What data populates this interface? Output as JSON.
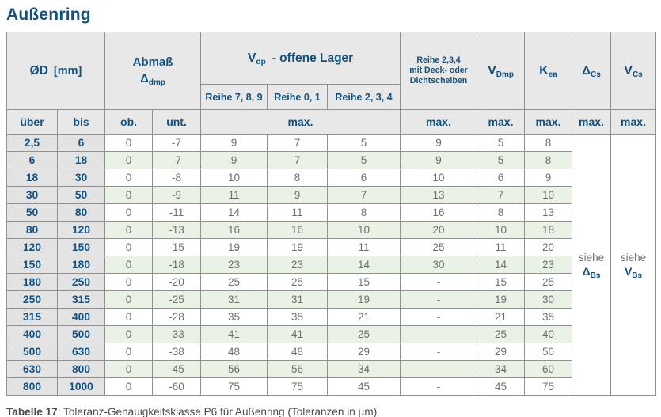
{
  "title": "Außenring",
  "colors": {
    "accent_blue": "#15507d",
    "header_gray": "#e8e8e8",
    "diameter_col_gray": "#e3e3e3",
    "stripe_green": "#eaf2e5",
    "value_text_gray": "#6e6f71",
    "border_gray": "#909090"
  },
  "table": {
    "type": "table",
    "header": {
      "od_sym": "ØD",
      "od_unit": "[mm]",
      "abmass_line1": "Abmaß",
      "abmass_sym": "Δ",
      "abmass_sub": "dmp",
      "vdp_sym": "V",
      "vdp_sub": "dp",
      "vdp_rest": "-  offene Lager",
      "reihe_cols": [
        "Reihe 7, 8, 9",
        "Reihe 0, 1",
        "Reihe 2, 3, 4"
      ],
      "deck_lines": [
        "Reihe 2,3,4",
        "mit Deck- oder",
        "Dichtscheiben"
      ],
      "vdmp_sym": "V",
      "vdmp_sub": "Dmp",
      "kea_sym": "K",
      "kea_sub": "ea",
      "dcs_sym": "Δ",
      "dcs_sub": "Cs",
      "vcs_sym": "V",
      "vcs_sub": "Cs",
      "col_uber": "über",
      "col_bis": "bis",
      "col_ob": "ob.",
      "col_unt": "unt.",
      "max_label": "max."
    },
    "rows": [
      [
        "2,5",
        "6",
        "0",
        "-7",
        "9",
        "7",
        "5",
        "9",
        "5",
        "8"
      ],
      [
        "6",
        "18",
        "0",
        "-7",
        "9",
        "7",
        "5",
        "9",
        "5",
        "8"
      ],
      [
        "18",
        "30",
        "0",
        "-8",
        "10",
        "8",
        "6",
        "10",
        "6",
        "9"
      ],
      [
        "30",
        "50",
        "0",
        "-9",
        "11",
        "9",
        "7",
        "13",
        "7",
        "10"
      ],
      [
        "50",
        "80",
        "0",
        "-11",
        "14",
        "11",
        "8",
        "16",
        "8",
        "13"
      ],
      [
        "80",
        "120",
        "0",
        "-13",
        "16",
        "16",
        "10",
        "20",
        "10",
        "18"
      ],
      [
        "120",
        "150",
        "0",
        "-15",
        "19",
        "19",
        "11",
        "25",
        "11",
        "20"
      ],
      [
        "150",
        "180",
        "0",
        "-18",
        "23",
        "23",
        "14",
        "30",
        "14",
        "23"
      ],
      [
        "180",
        "250",
        "0",
        "-20",
        "25",
        "25",
        "15",
        "-",
        "15",
        "25"
      ],
      [
        "250",
        "315",
        "0",
        "-25",
        "31",
        "31",
        "19",
        "-",
        "19",
        "30"
      ],
      [
        "315",
        "400",
        "0",
        "-28",
        "35",
        "35",
        "21",
        "-",
        "21",
        "35"
      ],
      [
        "400",
        "500",
        "0",
        "-33",
        "41",
        "41",
        "25",
        "-",
        "25",
        "40"
      ],
      [
        "500",
        "630",
        "0",
        "-38",
        "48",
        "48",
        "29",
        "-",
        "29",
        "50"
      ],
      [
        "630",
        "800",
        "0",
        "-45",
        "56",
        "56",
        "34",
        "-",
        "34",
        "60"
      ],
      [
        "800",
        "1000",
        "0",
        "-60",
        "75",
        "75",
        "45",
        "-",
        "45",
        "75"
      ]
    ],
    "siehe_cells": [
      {
        "word": "siehe",
        "sym": "Δ",
        "sub": "Bs"
      },
      {
        "word": "siehe",
        "sym": "V",
        "sub": "Bs"
      }
    ]
  },
  "caption": {
    "label": "Tabelle 17",
    "text": ": Toleranz-Genauigkeitsklasse P6 für Außenring (Toleranzen in µm)"
  }
}
